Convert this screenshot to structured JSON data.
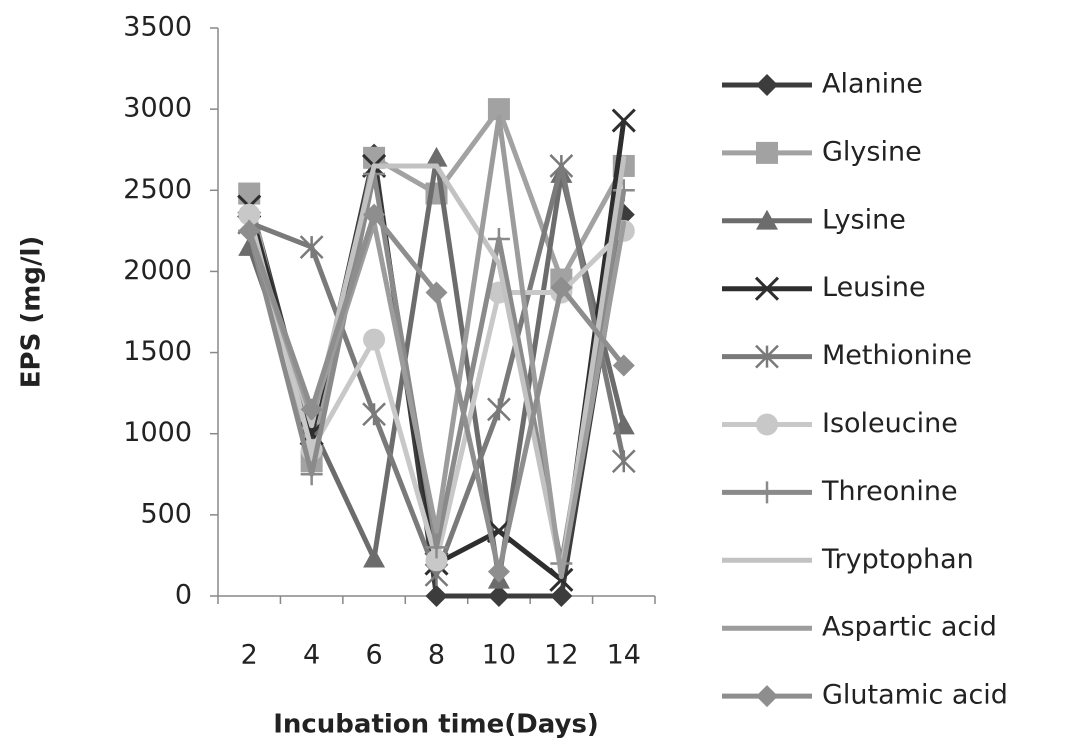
{
  "chart_data": {
    "type": "line",
    "x_label": "Incubation time(Days)",
    "y_label": "EPS (mg/l)",
    "categories": [
      "2",
      "4",
      "6",
      "8",
      "10",
      "12",
      "14"
    ],
    "ylim": [
      0,
      3500
    ],
    "yticks": [
      0,
      500,
      1000,
      1500,
      2000,
      2500,
      3000,
      3500
    ],
    "legend": "right",
    "series": [
      {
        "name": "Alanine",
        "color": "#3c3c3c",
        "marker": "diamond",
        "values": [
          2450,
          1000,
          2720,
          0,
          0,
          0,
          2350
        ]
      },
      {
        "name": "Glysine",
        "color": "#a2a2a2",
        "marker": "square",
        "values": [
          2480,
          830,
          2700,
          2480,
          3000,
          1950,
          2650
        ]
      },
      {
        "name": "Lysine",
        "color": "#6c6c6c",
        "marker": "triangle",
        "values": [
          2150,
          1050,
          230,
          2700,
          100,
          2600,
          1050
        ]
      },
      {
        "name": "Leusine",
        "color": "#2e2e2e",
        "marker": "x",
        "values": [
          2400,
          1000,
          2650,
          200,
          400,
          100,
          2930
        ]
      },
      {
        "name": "Methionine",
        "color": "#7a7a7a",
        "marker": "asterisk",
        "values": [
          2300,
          2150,
          1120,
          130,
          1150,
          2650,
          830
        ]
      },
      {
        "name": "Isoleucine",
        "color": "#c8c8c8",
        "marker": "circle",
        "values": [
          2350,
          900,
          1580,
          220,
          1870,
          1870,
          2250
        ]
      },
      {
        "name": "Threonine",
        "color": "#8a8a8a",
        "marker": "plus",
        "values": [
          2250,
          750,
          2600,
          300,
          2200,
          200,
          2500
        ]
      },
      {
        "name": "Tryptophan",
        "color": "#c2c2c2",
        "marker": "none",
        "values": [
          2300,
          1050,
          2650,
          2650,
          2050,
          150,
          2700
        ]
      },
      {
        "name": "Aspartic acid",
        "color": "#9c9c9c",
        "marker": "none",
        "values": [
          2250,
          1100,
          2300,
          400,
          2950,
          120,
          2300
        ]
      },
      {
        "name": "Glutamic acid",
        "color": "#8e8e8e",
        "marker": "diamond",
        "values": [
          2250,
          1150,
          2350,
          1870,
          150,
          1900,
          1420
        ]
      }
    ]
  }
}
